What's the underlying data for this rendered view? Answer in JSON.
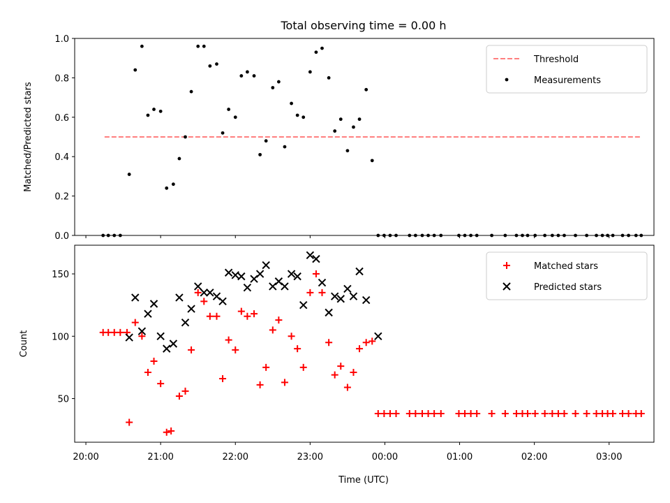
{
  "title": "Total observing time = 0.00 h",
  "xlabel": "Time (UTC)",
  "chart_data": [
    {
      "type": "scatter",
      "ylabel": "Matched/Predicted stars",
      "ylim": [
        0,
        1.0
      ],
      "yticks": [
        0.0,
        0.2,
        0.4,
        0.6,
        0.8,
        1.0
      ],
      "ytick_labels": [
        "0.0",
        "0.2",
        "0.4",
        "0.6",
        "0.8",
        "1.0"
      ],
      "xlim": [
        -0.15,
        7.6
      ],
      "legend_position": "top-right",
      "threshold": {
        "name": "Threshold",
        "y": 0.5,
        "x": [
          0.25,
          7.43
        ],
        "color": "#ff7f7f"
      },
      "series": [
        {
          "name": "Measurements",
          "marker": "dot",
          "color": "#000000",
          "x": [
            0.23,
            0.3,
            0.38,
            0.46,
            0.58,
            0.66,
            0.75,
            0.83,
            0.91,
            1.0,
            1.08,
            1.17,
            1.25,
            1.33,
            1.41,
            1.5,
            1.58,
            1.66,
            1.75,
            1.83,
            1.91,
            2.0,
            2.08,
            2.16,
            2.25,
            2.33,
            2.41,
            2.5,
            2.58,
            2.66,
            2.75,
            2.83,
            2.91,
            3.0,
            3.08,
            3.16,
            3.25,
            3.33,
            3.41,
            3.5,
            3.58,
            3.66,
            3.75,
            3.83,
            3.91,
            3.99,
            4.07,
            4.15,
            4.33,
            4.41,
            4.5,
            4.58,
            4.66,
            4.75,
            4.99,
            5.07,
            5.15,
            5.23,
            5.43,
            5.61,
            5.76,
            5.84,
            5.91,
            6.01,
            6.14,
            6.24,
            6.32,
            6.4,
            6.55,
            6.7,
            6.83,
            6.91,
            6.98,
            7.05,
            7.18,
            7.26,
            7.36,
            7.43
          ],
          "y": [
            0,
            0,
            0,
            0,
            0.31,
            0.84,
            0.96,
            0.61,
            0.64,
            0.63,
            0.24,
            0.26,
            0.39,
            0.5,
            0.73,
            0.96,
            0.96,
            0.86,
            0.87,
            0.52,
            0.64,
            0.6,
            0.81,
            0.83,
            0.81,
            0.41,
            0.48,
            0.75,
            0.78,
            0.45,
            0.67,
            0.61,
            0.6,
            0.83,
            0.93,
            0.95,
            0.8,
            0.53,
            0.59,
            0.43,
            0.55,
            0.59,
            0.74,
            0.38,
            0,
            0,
            0,
            0,
            0,
            0,
            0,
            0,
            0,
            0,
            0,
            0,
            0,
            0,
            0,
            0,
            0,
            0,
            0,
            0,
            0,
            0,
            0,
            0,
            0,
            0,
            0,
            0,
            0,
            0,
            0,
            0,
            0,
            0
          ]
        }
      ]
    },
    {
      "type": "scatter",
      "ylabel": "Count",
      "ylim": [
        15,
        173
      ],
      "yticks": [
        50,
        100,
        150
      ],
      "ytick_labels": [
        "50",
        "100",
        "150"
      ],
      "xlim": [
        -0.15,
        7.6
      ],
      "xticks": [
        0,
        1,
        2,
        3,
        4,
        5,
        6,
        7
      ],
      "xtick_labels": [
        "20:00",
        "21:00",
        "22:00",
        "23:00",
        "00:00",
        "01:00",
        "02:00",
        "03:00"
      ],
      "legend_position": "top-right",
      "series": [
        {
          "name": "Matched stars",
          "marker": "plus",
          "color": "#ff0000",
          "x": [
            0.23,
            0.3,
            0.38,
            0.46,
            0.55,
            0.58,
            0.66,
            0.75,
            0.83,
            0.91,
            1.0,
            1.08,
            1.14,
            1.25,
            1.33,
            1.41,
            1.5,
            1.58,
            1.66,
            1.75,
            1.83,
            1.91,
            2.0,
            2.08,
            2.16,
            2.25,
            2.33,
            2.41,
            2.5,
            2.58,
            2.66,
            2.75,
            2.83,
            2.91,
            3.0,
            3.08,
            3.16,
            3.25,
            3.33,
            3.41,
            3.5,
            3.58,
            3.66,
            3.75,
            3.83,
            3.91,
            3.99,
            4.07,
            4.15,
            4.33,
            4.41,
            4.5,
            4.58,
            4.66,
            4.75,
            4.99,
            5.07,
            5.15,
            5.23,
            5.43,
            5.61,
            5.76,
            5.84,
            5.91,
            6.01,
            6.14,
            6.24,
            6.32,
            6.4,
            6.55,
            6.7,
            6.83,
            6.91,
            6.98,
            7.05,
            7.18,
            7.26,
            7.36,
            7.43
          ],
          "y": [
            103,
            103,
            103,
            103,
            103,
            31,
            111,
            100,
            71,
            80,
            62,
            23,
            24,
            52,
            56,
            89,
            135,
            128,
            116,
            116,
            66,
            97,
            89,
            120,
            116,
            118,
            61,
            75,
            105,
            113,
            63,
            100,
            90,
            75,
            135,
            150,
            135,
            95,
            69,
            76,
            59,
            71,
            90,
            95,
            96,
            38,
            38,
            38,
            38,
            38,
            38,
            38,
            38,
            38,
            38,
            38,
            38,
            38,
            38,
            38,
            38,
            38,
            38,
            38,
            38,
            38,
            38,
            38,
            38,
            38,
            38,
            38,
            38,
            38,
            38,
            38,
            38,
            38,
            38
          ]
        },
        {
          "name": "Predicted stars",
          "marker": "x",
          "color": "#000000",
          "x": [
            0.58,
            0.66,
            0.75,
            0.83,
            0.91,
            1.0,
            1.08,
            1.17,
            1.25,
            1.33,
            1.41,
            1.5,
            1.58,
            1.66,
            1.75,
            1.83,
            1.91,
            2.0,
            2.08,
            2.16,
            2.25,
            2.33,
            2.41,
            2.5,
            2.58,
            2.66,
            2.75,
            2.83,
            2.91,
            3.0,
            3.08,
            3.16,
            3.25,
            3.33,
            3.41,
            3.5,
            3.58,
            3.66,
            3.75,
            3.91
          ],
          "y": [
            99,
            131,
            104,
            118,
            126,
            100,
            90,
            94,
            131,
            111,
            122,
            140,
            135,
            135,
            132,
            128,
            151,
            149,
            148,
            139,
            146,
            150,
            157,
            140,
            144,
            140,
            150,
            148,
            125,
            165,
            162,
            143,
            119,
            132,
            130,
            138,
            132,
            152,
            129,
            100
          ]
        }
      ]
    }
  ],
  "icons": {
    "dot": "filled-circle-marker",
    "plus": "plus-marker",
    "x": "cross-marker"
  }
}
